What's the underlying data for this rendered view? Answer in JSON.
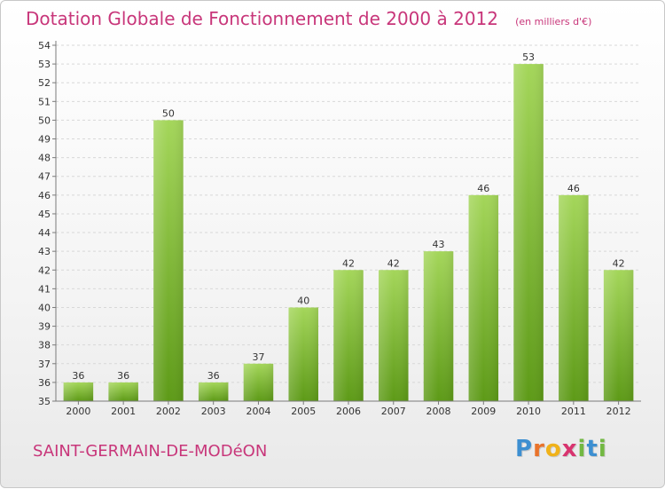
{
  "title": "Dotation Globale de Fonctionnement de 2000 à 2012",
  "subtitle": "(en milliers d'€)",
  "commune": "SAINT-GERMAIN-DE-MODéON",
  "brand": {
    "letters": [
      "P",
      "r",
      "o",
      "x",
      "i",
      "t",
      "i"
    ],
    "colors": [
      "#3d8fd1",
      "#e9732b",
      "#f0b21a",
      "#d8346f",
      "#72b842",
      "#3d8fd1",
      "#72b842"
    ]
  },
  "colors": {
    "title": "#c8367a",
    "bar_top": "#a4d65a",
    "bar_bottom": "#5d9a17",
    "grid": "#d8d8d8",
    "axis": "#7a7a7a"
  },
  "chart_data": {
    "type": "bar",
    "categories": [
      "2000",
      "2001",
      "2002",
      "2003",
      "2004",
      "2005",
      "2006",
      "2007",
      "2008",
      "2009",
      "2010",
      "2011",
      "2012"
    ],
    "values": [
      36,
      36,
      50,
      36,
      37,
      40,
      42,
      42,
      43,
      46,
      53,
      46,
      42
    ],
    "title": "Dotation Globale de Fonctionnement de 2000 à 2012",
    "subtitle": "(en milliers d'€)",
    "xlabel": "",
    "ylabel": "",
    "ylim": [
      35,
      54
    ],
    "yticks": [
      35,
      36,
      37,
      38,
      39,
      40,
      41,
      42,
      43,
      44,
      45,
      46,
      47,
      48,
      49,
      50,
      51,
      52,
      53,
      54
    ],
    "grid": true,
    "data_labels": true
  }
}
